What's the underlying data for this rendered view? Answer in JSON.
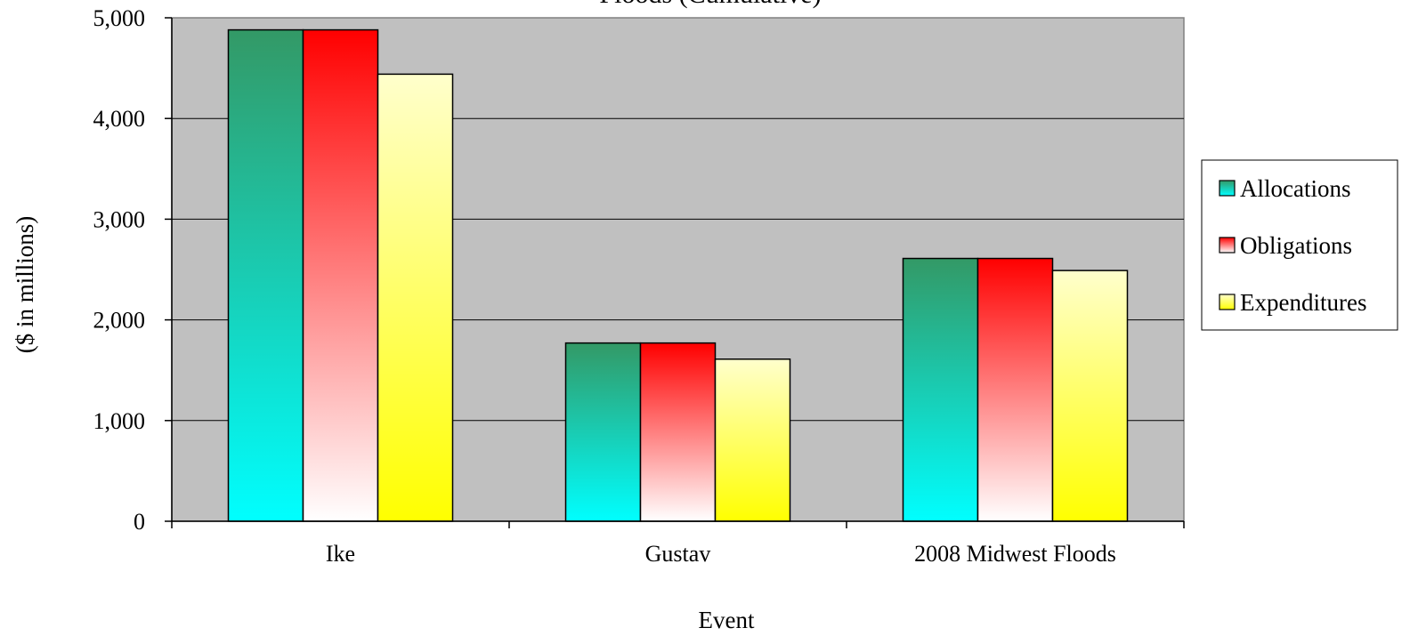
{
  "chart_data": {
    "type": "bar",
    "title": "Floods (Cumulative)",
    "xlabel": "Event",
    "ylabel": "($ in millions)",
    "categories": [
      "Ike",
      "Gustav",
      "2008 Midwest Floods"
    ],
    "series": [
      {
        "name": "Allocations",
        "values": [
          4880,
          1770,
          2610
        ]
      },
      {
        "name": "Obligations",
        "values": [
          4880,
          1770,
          2610
        ]
      },
      {
        "name": "Expenditures",
        "values": [
          4440,
          1610,
          2490
        ]
      }
    ],
    "ylim": [
      0,
      5000
    ],
    "yticks": [
      0,
      1000,
      2000,
      3000,
      4000,
      5000
    ],
    "ytick_labels": [
      "0",
      "1,000",
      "2,000",
      "3,000",
      "4,000",
      "5,000"
    ],
    "grid": true,
    "legend_position": "right",
    "colors": {
      "plot_background": "#c0c0c0",
      "gridline": "#000000",
      "allocations_top": "#339966",
      "allocations_bottom": "#00ffff",
      "obligations_top": "#ff0000",
      "obligations_bottom": "#ffffff",
      "expenditures_top": "#ffffcc",
      "expenditures_bottom": "#ffff00"
    }
  }
}
